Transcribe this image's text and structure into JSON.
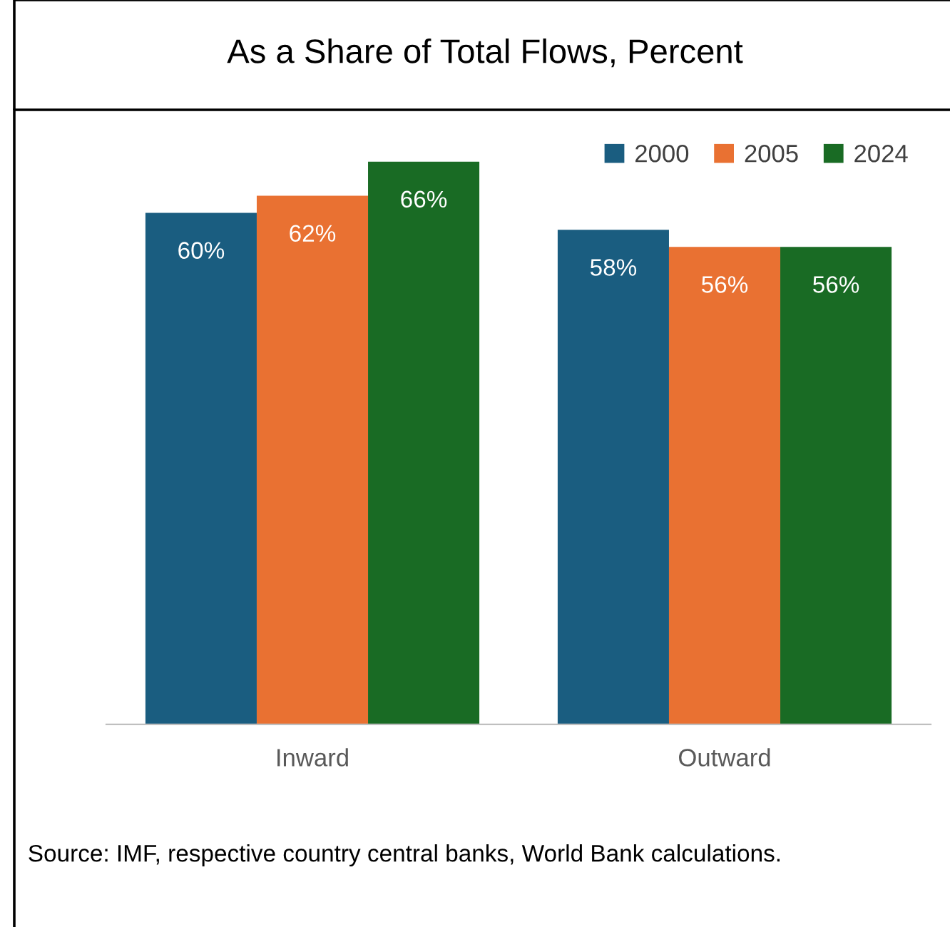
{
  "chart_data": {
    "type": "bar",
    "title": "As a Share of Total Flows, Percent",
    "categories": [
      "Inward",
      "Outward"
    ],
    "series": [
      {
        "name": "2000",
        "color": "#1a5d80",
        "values": [
          60,
          58
        ],
        "value_labels": [
          "60%",
          "58%"
        ]
      },
      {
        "name": "2005",
        "color": "#e97132",
        "values": [
          62,
          56
        ],
        "value_labels": [
          "62%",
          "56%"
        ]
      },
      {
        "name": "2024",
        "color": "#196b24",
        "values": [
          66,
          56
        ],
        "value_labels": [
          "66%",
          "56%"
        ]
      }
    ],
    "tick_labels": "x",
    "legend": "top right",
    "grid": false,
    "annotations": [
      "Source: IMF, respective country central banks, World Bank calculations."
    ]
  }
}
